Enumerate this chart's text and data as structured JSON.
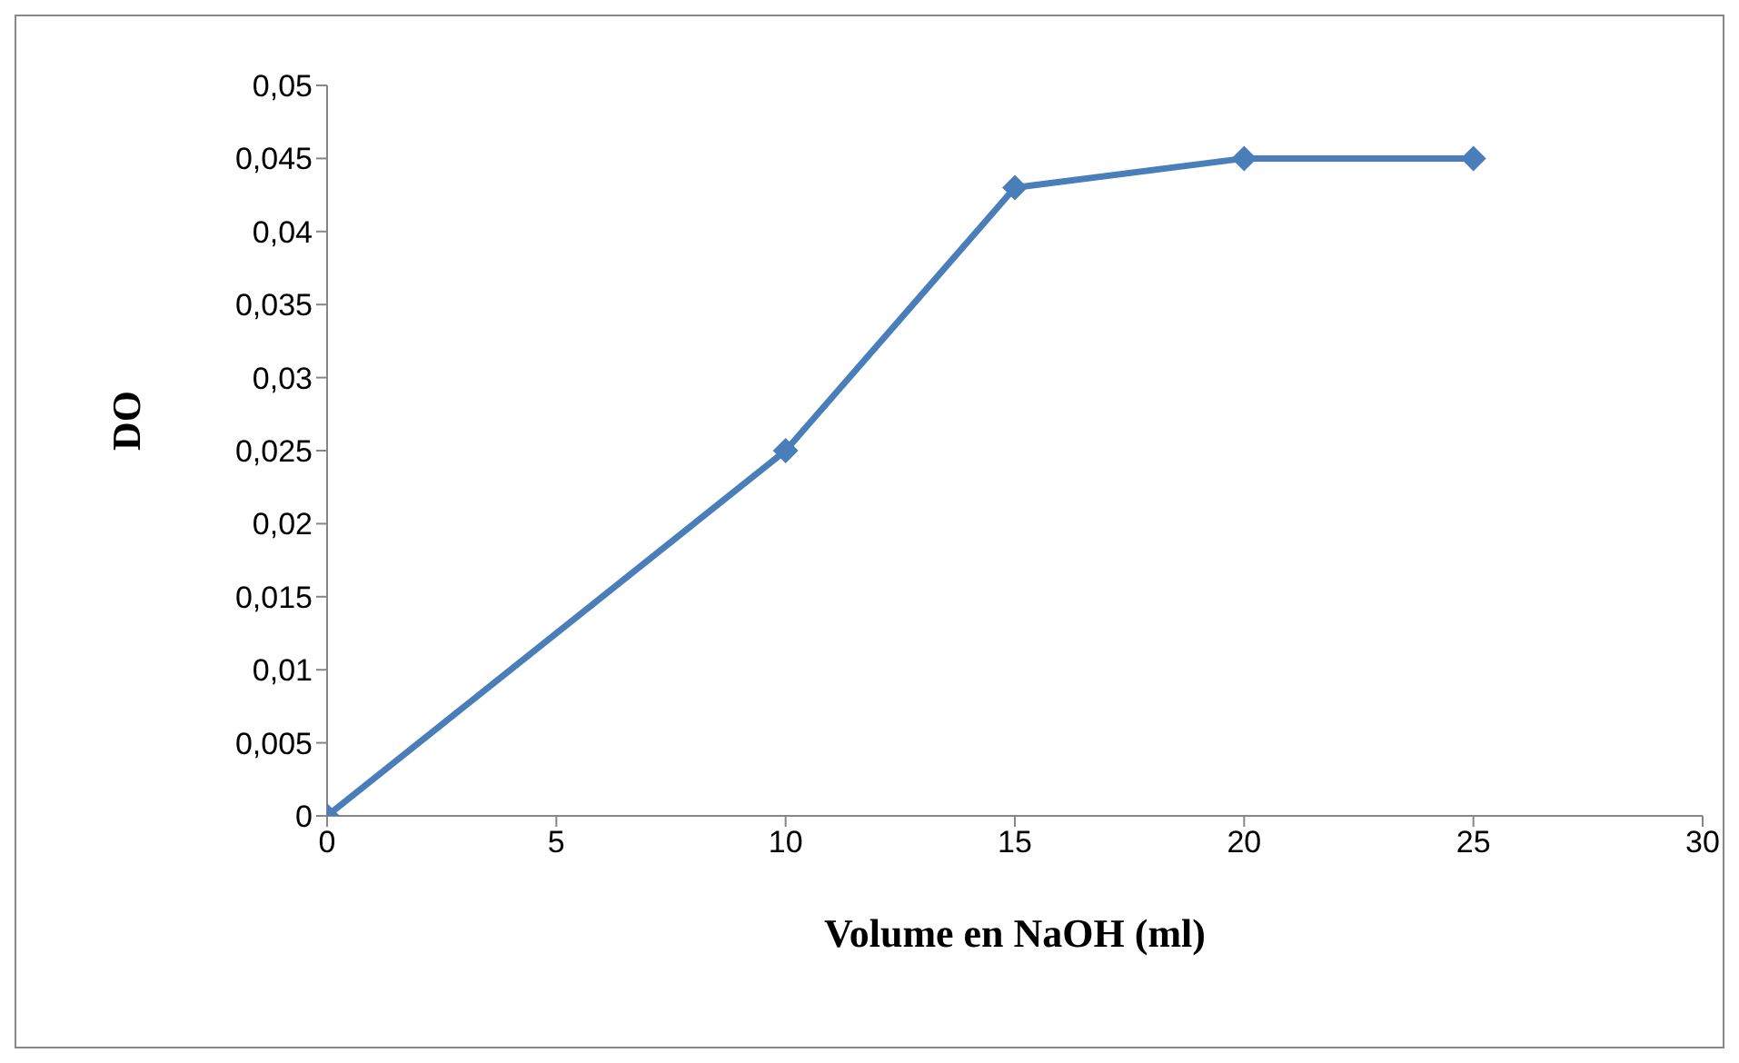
{
  "chart_data": {
    "type": "line",
    "xlabel": "Volume en NaOH (ml)",
    "ylabel": "DO",
    "x": [
      0,
      10,
      15,
      20,
      25
    ],
    "series": [
      {
        "color": "#4a7ebb",
        "values": [
          0,
          0.025,
          0.043,
          0.045,
          0.045
        ]
      }
    ],
    "xlim": [
      0,
      30
    ],
    "xticks": [
      0,
      5,
      10,
      15,
      20,
      25,
      30
    ],
    "ylim": [
      0,
      0.05
    ],
    "yticks": [
      0,
      {
        "value": 0.005,
        "label": "0,005"
      },
      {
        "value": 0.01,
        "label": "0,01"
      },
      {
        "value": 0.015,
        "label": "0,015"
      },
      {
        "value": 0.02,
        "label": "0,02"
      },
      {
        "value": 0.025,
        "label": "0,025"
      },
      {
        "value": 0.03,
        "label": "0,03"
      },
      {
        "value": 0.035,
        "label": "0,035"
      },
      {
        "value": 0.04,
        "label": "0,04"
      },
      {
        "value": 0.045,
        "label": "0,045"
      },
      {
        "value": 0.05,
        "label": "0,05"
      }
    ],
    "grid": false,
    "legend": false,
    "marker": "diamond",
    "line_style": "solid"
  }
}
